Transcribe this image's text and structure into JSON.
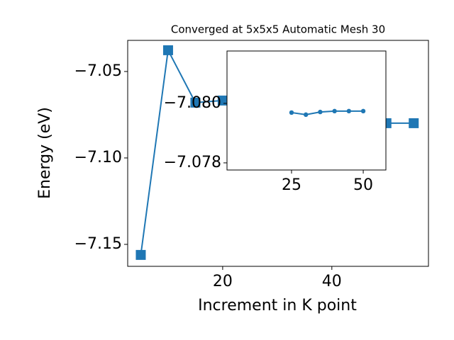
{
  "chart_data": [
    {
      "type": "line",
      "title": "Converged at 5x5x5 Automatic Mesh 30",
      "xlabel": "Increment in K point",
      "ylabel": "Energy (eV)",
      "x": [
        5,
        10,
        15,
        20,
        25,
        30,
        35,
        40,
        45,
        50,
        55
      ],
      "series": [
        {
          "name": "Energy",
          "color": "#1f77b4",
          "values": [
            -7.1561,
            -7.0377,
            -7.068,
            -7.0668,
            -7.0797,
            -7.0796,
            -7.0797,
            -7.0797,
            -7.0797,
            -7.0799,
            -7.0799
          ]
        }
      ],
      "xlim": [
        2.6,
        57.7
      ],
      "ylim": [
        -7.1627,
        -7.032
      ],
      "xticks": [
        20,
        40
      ],
      "yticks": [
        {
          "value": -7.05,
          "label": "−7.05"
        },
        {
          "value": -7.1,
          "label": "−7.10"
        },
        {
          "value": -7.15,
          "label": "−7.15"
        }
      ]
    },
    {
      "type": "line",
      "x": [
        25,
        30,
        35,
        40,
        45,
        50
      ],
      "series": [
        {
          "name": "Energy",
          "color": "#1f77b4",
          "values": [
            -7.07969,
            -7.07962,
            -7.07971,
            -7.07974,
            -7.07974,
            -7.07974
          ]
        }
      ],
      "xlim": [
        2.5,
        57.9
      ],
      "ylim": [
        -7.07776,
        -7.08176
      ],
      "xticks": [
        25,
        50
      ],
      "yticks": [
        {
          "value": -7.08,
          "label": "−7.080"
        },
        {
          "value": -7.078,
          "label": "−7.078"
        }
      ]
    }
  ]
}
